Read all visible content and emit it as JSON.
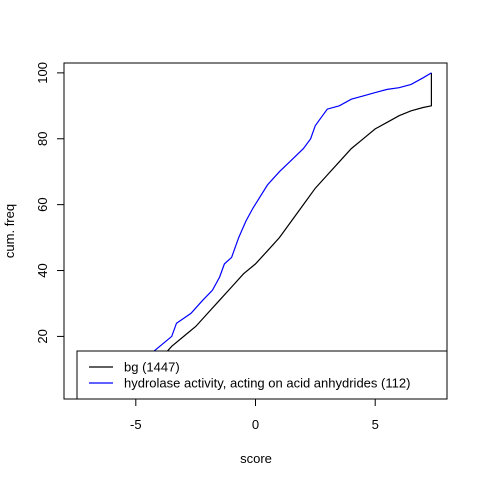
{
  "chart_data": {
    "type": "line",
    "title": "",
    "xlabel": "score",
    "ylabel": "cum. freq",
    "xlim": [
      -8,
      8
    ],
    "ylim": [
      1,
      103
    ],
    "x_ticks": [
      -5,
      0,
      5
    ],
    "y_ticks": [
      20,
      40,
      60,
      80,
      100
    ],
    "grid": false,
    "legend_position": "bottom-right",
    "series": [
      {
        "name": "bg (1447)",
        "color": "#000000",
        "points": [
          [
            -7.6,
            0.5
          ],
          [
            -6,
            2
          ],
          [
            -5,
            6
          ],
          [
            -4.5,
            10
          ],
          [
            -4,
            13
          ],
          [
            -3.5,
            17
          ],
          [
            -3,
            20
          ],
          [
            -2.5,
            23
          ],
          [
            -2,
            27
          ],
          [
            -1.5,
            31
          ],
          [
            -1,
            35
          ],
          [
            -0.5,
            39
          ],
          [
            0,
            42
          ],
          [
            0.5,
            46
          ],
          [
            1,
            50
          ],
          [
            1.5,
            55
          ],
          [
            2,
            60
          ],
          [
            2.5,
            65
          ],
          [
            3,
            69
          ],
          [
            3.5,
            73
          ],
          [
            4,
            77
          ],
          [
            4.5,
            80
          ],
          [
            5,
            83
          ],
          [
            5.5,
            85
          ],
          [
            6,
            87
          ],
          [
            6.5,
            88.5
          ],
          [
            7,
            89.5
          ],
          [
            7.35,
            90
          ],
          [
            7.35,
            100
          ]
        ]
      },
      {
        "name": "hydrolase activity, acting on acid anhydrides (112)",
        "color": "#0000ff",
        "points": [
          [
            -7.6,
            0.5
          ],
          [
            -6,
            4
          ],
          [
            -5,
            10
          ],
          [
            -4.5,
            14
          ],
          [
            -4,
            17
          ],
          [
            -3.5,
            20
          ],
          [
            -3.3,
            24
          ],
          [
            -2.7,
            27
          ],
          [
            -2.2,
            31
          ],
          [
            -1.8,
            34
          ],
          [
            -1.5,
            38
          ],
          [
            -1.3,
            42
          ],
          [
            -1,
            44
          ],
          [
            -0.7,
            50
          ],
          [
            -0.4,
            55
          ],
          [
            -0.1,
            59
          ],
          [
            0.5,
            66
          ],
          [
            1,
            70
          ],
          [
            1.5,
            73.5
          ],
          [
            2,
            77
          ],
          [
            2.3,
            80
          ],
          [
            2.5,
            84
          ],
          [
            2.8,
            87
          ],
          [
            3,
            89
          ],
          [
            3.5,
            90
          ],
          [
            4,
            92
          ],
          [
            4.5,
            93
          ],
          [
            5,
            94
          ],
          [
            5.5,
            95
          ],
          [
            6,
            95.5
          ],
          [
            6.5,
            96.5
          ],
          [
            7,
            98.5
          ],
          [
            7.35,
            100
          ]
        ]
      }
    ]
  }
}
